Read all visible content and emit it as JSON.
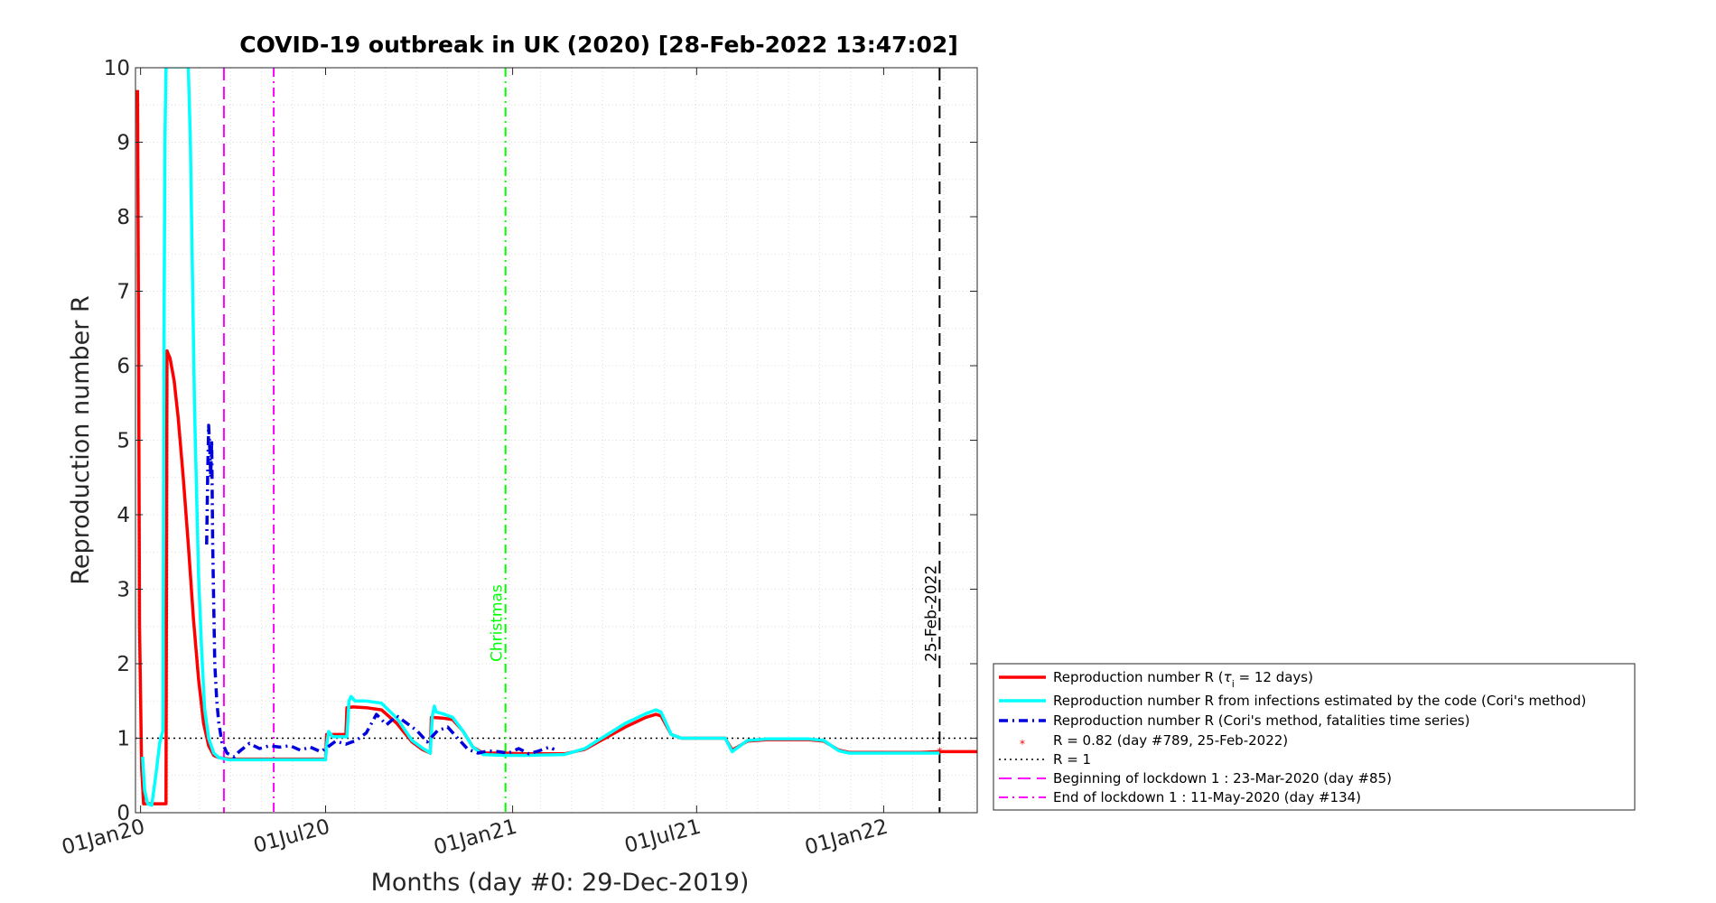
{
  "chart_data": {
    "type": "line",
    "title": "COVID-19 outbreak in UK (2020) [28-Feb-2022 13:47:02]",
    "xlabel": "Months (day #0: 29-Dec-2019)",
    "ylabel": "Reproduction number R",
    "x_unit": "day",
    "xlim": [
      -2,
      826
    ],
    "ylim": [
      0,
      10
    ],
    "yticks": [
      0,
      1,
      2,
      3,
      4,
      5,
      6,
      7,
      8,
      9,
      10
    ],
    "xticks": [
      {
        "day": 3,
        "label": "01Jan20"
      },
      {
        "day": 185,
        "label": "01Jul20"
      },
      {
        "day": 369,
        "label": "01Jan21"
      },
      {
        "day": 550,
        "label": "01Jul21"
      },
      {
        "day": 734,
        "label": "01Jan22"
      }
    ],
    "grid": true,
    "legend_position": "bottom-right, outside plot",
    "series": [
      {
        "name": "Reproduction number R (τi = 12 days)",
        "legend_main": "Reproduction number R (",
        "legend_tau": "τ",
        "legend_sub": "i",
        "legend_rest": " = 12 days)",
        "color": "#ff0000",
        "style": "solid",
        "points": [
          [
            0,
            9.7
          ],
          [
            1,
            6.5
          ],
          [
            2,
            2.5
          ],
          [
            4,
            0.6
          ],
          [
            6,
            0.12
          ],
          [
            10,
            0.12
          ],
          [
            20,
            0.12
          ],
          [
            28,
            0.12
          ],
          [
            29,
            6.2
          ],
          [
            32,
            6.1
          ],
          [
            36,
            5.8
          ],
          [
            40,
            5.3
          ],
          [
            45,
            4.5
          ],
          [
            50,
            3.6
          ],
          [
            55,
            2.6
          ],
          [
            60,
            1.8
          ],
          [
            65,
            1.2
          ],
          [
            70,
            0.9
          ],
          [
            75,
            0.77
          ],
          [
            80,
            0.74
          ],
          [
            90,
            0.72
          ],
          [
            100,
            0.72
          ],
          [
            140,
            0.72
          ],
          [
            185,
            0.72
          ],
          [
            186,
            1.05
          ],
          [
            190,
            1.05
          ],
          [
            205,
            1.05
          ],
          [
            206,
            1.41
          ],
          [
            212,
            1.42
          ],
          [
            225,
            1.41
          ],
          [
            240,
            1.38
          ],
          [
            255,
            1.2
          ],
          [
            270,
            0.95
          ],
          [
            280,
            0.85
          ],
          [
            288,
            0.8
          ],
          [
            289,
            1.28
          ],
          [
            300,
            1.27
          ],
          [
            310,
            1.25
          ],
          [
            320,
            1.1
          ],
          [
            330,
            0.88
          ],
          [
            340,
            0.8
          ],
          [
            360,
            0.8
          ],
          [
            380,
            0.79
          ],
          [
            420,
            0.79
          ],
          [
            440,
            0.85
          ],
          [
            460,
            1.0
          ],
          [
            480,
            1.15
          ],
          [
            500,
            1.28
          ],
          [
            510,
            1.32
          ],
          [
            515,
            1.3
          ],
          [
            525,
            1.05
          ],
          [
            535,
            1.0
          ],
          [
            550,
            1.0
          ],
          [
            570,
            1.0
          ],
          [
            578,
            1.0
          ],
          [
            585,
            0.84
          ],
          [
            590,
            0.88
          ],
          [
            600,
            0.96
          ],
          [
            620,
            0.98
          ],
          [
            640,
            0.98
          ],
          [
            660,
            0.98
          ],
          [
            675,
            0.96
          ],
          [
            690,
            0.84
          ],
          [
            700,
            0.81
          ],
          [
            740,
            0.81
          ],
          [
            770,
            0.81
          ],
          [
            789,
            0.82
          ],
          [
            826,
            0.82
          ]
        ]
      },
      {
        "name": "Reproduction number R from infections estimated by the code (Cori's method)",
        "color": "#00ffff",
        "style": "solid",
        "points": [
          [
            5,
            0.75
          ],
          [
            7,
            0.3
          ],
          [
            10,
            0.12
          ],
          [
            14,
            0.1
          ],
          [
            18,
            0.5
          ],
          [
            22,
            0.95
          ],
          [
            25,
            1.1
          ],
          [
            26,
            6.1
          ],
          [
            27,
            9.0
          ],
          [
            28,
            10.3
          ],
          [
            50,
            10.3
          ],
          [
            52,
            9.0
          ],
          [
            56,
            5.5
          ],
          [
            60,
            3.2
          ],
          [
            63,
            2.2
          ],
          [
            66,
            1.4
          ],
          [
            70,
            1.0
          ],
          [
            75,
            0.8
          ],
          [
            80,
            0.74
          ],
          [
            90,
            0.71
          ],
          [
            140,
            0.71
          ],
          [
            185,
            0.71
          ],
          [
            186,
            0.9
          ],
          [
            188,
            1.09
          ],
          [
            192,
            1.02
          ],
          [
            206,
            1.02
          ],
          [
            208,
            1.5
          ],
          [
            210,
            1.56
          ],
          [
            214,
            1.5
          ],
          [
            225,
            1.5
          ],
          [
            240,
            1.47
          ],
          [
            255,
            1.27
          ],
          [
            270,
            0.97
          ],
          [
            280,
            0.87
          ],
          [
            288,
            0.8
          ],
          [
            290,
            1.3
          ],
          [
            292,
            1.43
          ],
          [
            294,
            1.35
          ],
          [
            300,
            1.33
          ],
          [
            310,
            1.28
          ],
          [
            320,
            1.1
          ],
          [
            330,
            0.88
          ],
          [
            340,
            0.78
          ],
          [
            360,
            0.77
          ],
          [
            380,
            0.77
          ],
          [
            420,
            0.78
          ],
          [
            440,
            0.86
          ],
          [
            460,
            1.03
          ],
          [
            480,
            1.2
          ],
          [
            500,
            1.33
          ],
          [
            510,
            1.38
          ],
          [
            515,
            1.35
          ],
          [
            525,
            1.05
          ],
          [
            535,
            1.0
          ],
          [
            550,
            1.0
          ],
          [
            570,
            1.0
          ],
          [
            578,
            1.0
          ],
          [
            585,
            0.82
          ],
          [
            590,
            0.87
          ],
          [
            600,
            0.97
          ],
          [
            620,
            0.99
          ],
          [
            640,
            0.99
          ],
          [
            660,
            0.99
          ],
          [
            675,
            0.97
          ],
          [
            690,
            0.83
          ],
          [
            700,
            0.8
          ],
          [
            740,
            0.8
          ],
          [
            770,
            0.8
          ],
          [
            789,
            0.8
          ]
        ]
      },
      {
        "name": "Reproduction number R (Cori's method, fatalities time series)",
        "color": "#0000dd",
        "style": "dashdot",
        "points": [
          [
            68,
            3.6
          ],
          [
            69,
            4.5
          ],
          [
            70,
            5.2
          ],
          [
            71,
            4.9
          ],
          [
            72,
            4.5
          ],
          [
            73,
            5.0
          ],
          [
            74,
            3.6
          ],
          [
            76,
            2.0
          ],
          [
            78,
            1.5
          ],
          [
            80,
            1.2
          ],
          [
            83,
            0.95
          ],
          [
            88,
            0.8
          ],
          [
            95,
            0.75
          ],
          [
            100,
            0.82
          ],
          [
            110,
            0.93
          ],
          [
            120,
            0.86
          ],
          [
            130,
            0.9
          ],
          [
            140,
            0.88
          ],
          [
            150,
            0.9
          ],
          [
            160,
            0.84
          ],
          [
            170,
            0.88
          ],
          [
            180,
            0.82
          ],
          [
            185,
            0.86
          ],
          [
            195,
            0.96
          ],
          [
            205,
            0.92
          ],
          [
            215,
            0.97
          ],
          [
            225,
            1.07
          ],
          [
            235,
            1.32
          ],
          [
            245,
            1.18
          ],
          [
            255,
            1.3
          ],
          [
            265,
            1.2
          ],
          [
            275,
            1.1
          ],
          [
            285,
            0.95
          ],
          [
            295,
            1.1
          ],
          [
            305,
            1.15
          ],
          [
            315,
            1.0
          ],
          [
            325,
            0.85
          ],
          [
            335,
            0.8
          ],
          [
            345,
            0.83
          ],
          [
            355,
            0.82
          ],
          [
            365,
            0.8
          ],
          [
            375,
            0.86
          ],
          [
            385,
            0.79
          ],
          [
            395,
            0.83
          ],
          [
            405,
            0.88
          ],
          [
            410,
            0.85
          ]
        ]
      }
    ],
    "marker": {
      "label": "R = 0.82 (day #789, 25-Feb-2022)",
      "day": 789,
      "value": 0.82,
      "color": "#ff0000"
    },
    "hlines": [
      {
        "label": "R = 1",
        "value": 1,
        "color": "#000000",
        "style": "dotted"
      }
    ],
    "vlines": [
      {
        "label": "Beginning of lockdown 1 : 23-Mar-2020 (day #85)",
        "day": 85,
        "color": "#ff00ff",
        "style": "dashed"
      },
      {
        "label": "End of lockdown 1 : 11-May-2020 (day #134)",
        "day": 134,
        "color": "#ff00ff",
        "style": "dashdot"
      },
      {
        "text": "Christmas",
        "day": 362,
        "color": "#00ff00",
        "style": "dashdot"
      },
      {
        "text": "25-Feb-2022",
        "day": 789,
        "color": "#000000",
        "style": "dashed"
      }
    ]
  }
}
